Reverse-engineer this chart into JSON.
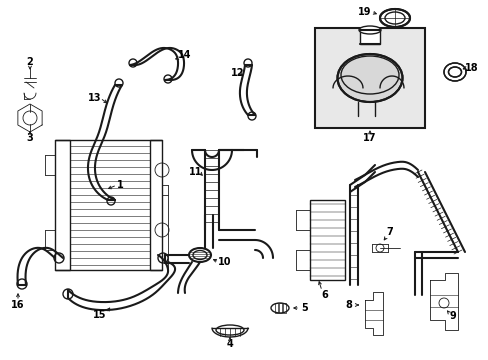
{
  "background": "#ffffff",
  "line_color": "#1a1a1a",
  "label_color": "#000000",
  "box_fill": "#e8e8e8",
  "figsize": [
    4.89,
    3.6
  ],
  "dpi": 100,
  "xlim": [
    0,
    489
  ],
  "ylim": [
    0,
    360
  ]
}
